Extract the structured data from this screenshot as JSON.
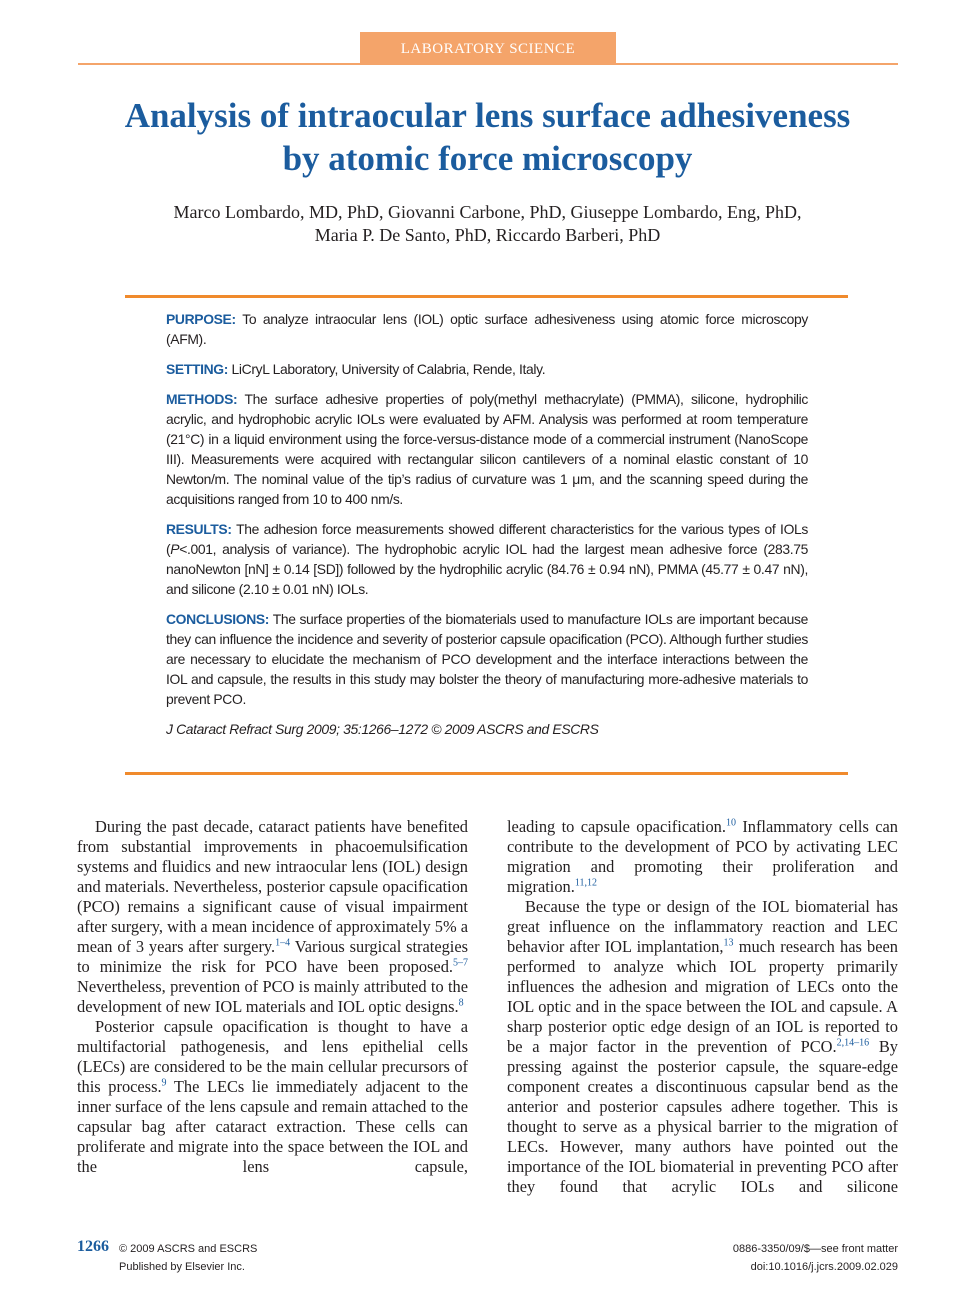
{
  "header": {
    "section": "LABORATORY SCIENCE"
  },
  "title": [
    "Analysis of intraocular lens surface adhesiveness",
    "by atomic force microscopy"
  ],
  "authors": [
    "Marco Lombardo, MD, PhD, Giovanni Carbone, PhD, Giuseppe Lombardo, Eng, PhD,",
    "Maria P. De Santo, PhD, Riccardo Barberi, PhD"
  ],
  "abstract": {
    "sections": [
      {
        "label": "PURPOSE:",
        "runs": [
          {
            "text": " To analyze intraocular lens (IOL) optic surface adhesiveness using atomic force microscopy (AFM)."
          }
        ]
      },
      {
        "label": "SETTING:",
        "runs": [
          {
            "text": " LiCryL Laboratory, University of Calabria, Rende, Italy."
          }
        ]
      },
      {
        "label": "METHODS:",
        "runs": [
          {
            "text": " The surface adhesive properties of poly(methyl methacrylate) (PMMA), silicone, hydrophilic acrylic, and hydrophobic acrylic IOLs were evaluated by AFM. Analysis was performed at room temperature (21°C) in a liquid environment using the force-versus-distance mode of a commercial instrument (NanoScope III). Measurements were acquired with rectangular silicon cantilevers of a nominal elastic constant of 10 Newton/m. The nominal value of the tip’s radius of curvature was 1 μm, and the scanning speed during the acquisitions ranged from 10 to 400 nm/s."
          }
        ]
      },
      {
        "label": "RESULTS:",
        "runs": [
          {
            "text": " The adhesion force measurements showed different characteristics for the various types of IOLs ("
          },
          {
            "italic": "P"
          },
          {
            "text": "<.001, analysis of variance). The hydrophobic acrylic IOL had the largest mean adhesive force (283.75 nanoNewton [nN] ± 0.14 [SD]) followed by the hydrophilic acrylic (84.76 ± 0.94 nN), PMMA (45.77 ± 0.47 nN), and silicone (2.10 ± 0.01 nN) IOLs."
          }
        ]
      },
      {
        "label": "CONCLUSIONS:",
        "runs": [
          {
            "text": " The surface properties of the biomaterials used to manufacture IOLs are important because they can influence the incidence and severity of posterior capsule opacification (PCO). Although further studies are necessary to elucidate the mechanism of PCO development and the interface interactions between the IOL and capsule, the results in this study may bolster the theory of manufacturing more-adhesive materials to prevent PCO."
          }
        ]
      }
    ],
    "citation": "J Cataract Refract Surg 2009; 35:1266–1272 © 2009 ASCRS and ESCRS"
  },
  "body": {
    "columns": [
      [
        {
          "runs": [
            {
              "text": "During the past decade, cataract patients have benefited from substantial improvements in phacoemulsification systems and fluidics and new intraocular lens (IOL) design and materials. Nevertheless, posterior capsule opacification (PCO) remains a significant cause of visual impairment after surgery, with a mean incidence of approximately 5% a mean of 3 years after surgery."
            },
            {
              "sup": "1–4"
            },
            {
              "text": " Various surgical strategies to minimize the risk for PCO have been proposed."
            },
            {
              "sup": "5–7"
            },
            {
              "text": " Nevertheless, prevention of PCO is mainly attributed to the development of new IOL materials and IOL optic designs."
            },
            {
              "sup": "8"
            }
          ]
        },
        {
          "runs": [
            {
              "text": "Posterior capsule opacification is thought to have a multifactorial pathogenesis, and lens epithelial cells (LECs) are considered to be the main cellular precursors of this process."
            },
            {
              "sup": "9"
            },
            {
              "text": " The LECs lie immediately adjacent to the inner surface of the lens capsule and remain attached to the capsular bag after cataract extraction. These cells can proliferate and migrate into the space between the IOL and the lens capsule,"
            }
          ]
        }
      ],
      [
        {
          "runs": [
            {
              "text": "leading to capsule opacification."
            },
            {
              "sup": "10"
            },
            {
              "text": " Inflammatory cells can contribute to the development of PCO by activating LEC migration and promoting their proliferation and migration."
            },
            {
              "sup": "11,12"
            }
          ]
        },
        {
          "runs": [
            {
              "text": "Because the type or design of the IOL biomaterial has great influence on the inflammatory reaction and LEC behavior after IOL implantation,"
            },
            {
              "sup": "13"
            },
            {
              "text": " much research has been performed to analyze which IOL property primarily influences the adhesion and migration of LECs onto the IOL optic and in the space between the IOL and capsule. A sharp posterior optic edge design of an IOL is reported to be a major factor in the prevention of PCO."
            },
            {
              "sup": "2,14–16"
            },
            {
              "text": " By pressing against the posterior capsule, the square-edge component creates a discontinuous capsular bend as the anterior and posterior capsules adhere together. This is thought to serve as a physical barrier to the migration of LECs. However, many authors have pointed out the importance of the IOL biomaterial in preventing PCO after they found that acrylic IOLs and silicone"
            }
          ]
        }
      ]
    ]
  },
  "footer": {
    "page": "1266",
    "copyright": "© 2009 ASCRS and ESCRS",
    "publisher": "Published by Elsevier Inc.",
    "issn": "0886-3350/09/$—see front matter",
    "doi": "doi:10.1016/j.jcrs.2009.02.029"
  }
}
